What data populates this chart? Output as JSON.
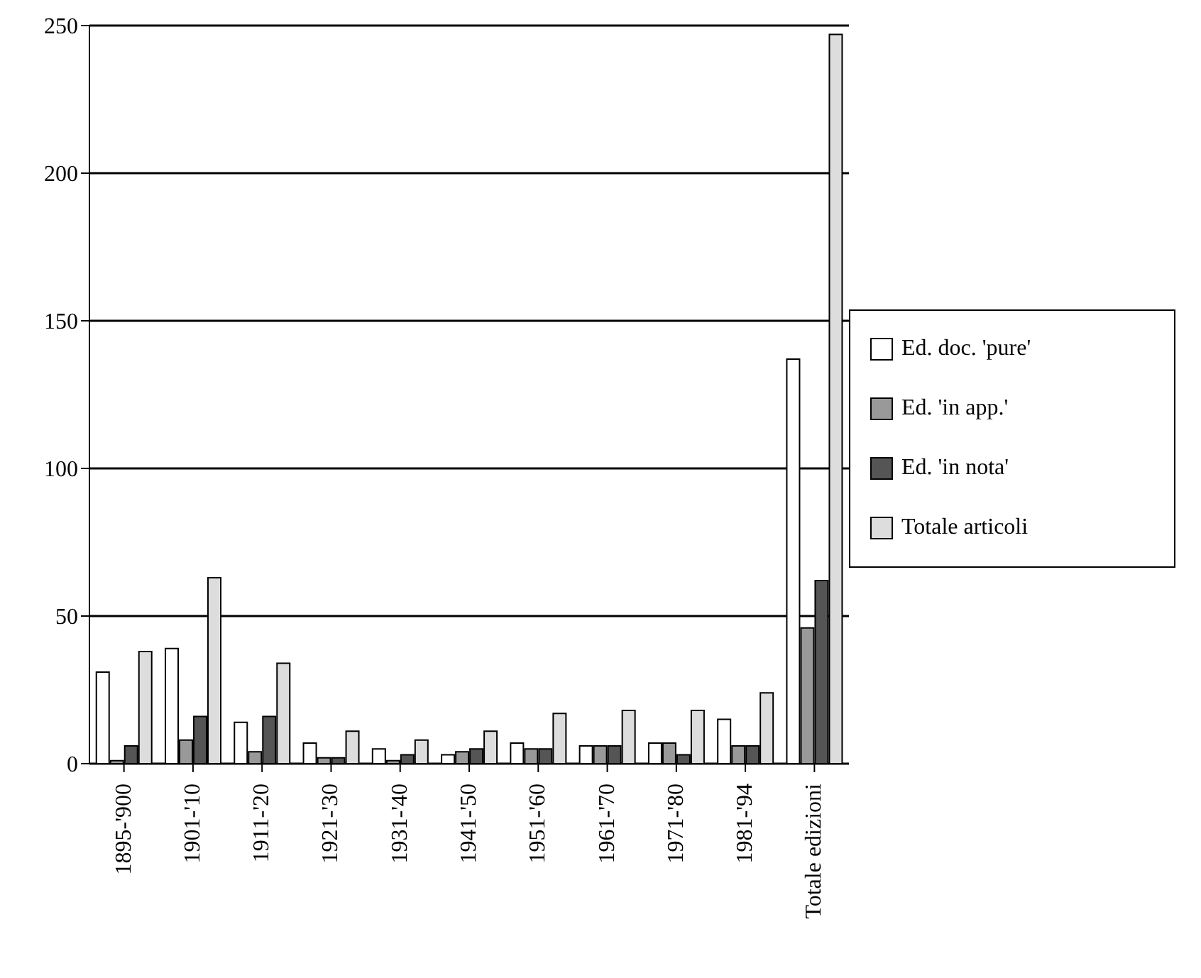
{
  "chart_data": {
    "type": "bar",
    "categories": [
      "1895-'900",
      "1901-'10",
      "1911-'20",
      "1921-'30",
      "1931-'40",
      "1941-'50",
      "1951-'60",
      "1961-'70",
      "1971-'80",
      "1981-'94",
      "Totale edizioni"
    ],
    "series": [
      {
        "name": "Ed. doc. 'pure'",
        "color": "#ffffff",
        "values": [
          31,
          39,
          14,
          7,
          5,
          3,
          7,
          6,
          7,
          15,
          137
        ]
      },
      {
        "name": "Ed. 'in app.'",
        "color": "#999999",
        "values": [
          1,
          8,
          4,
          2,
          1,
          4,
          5,
          6,
          7,
          6,
          46
        ]
      },
      {
        "name": "Ed. 'in nota'",
        "color": "#555555",
        "values": [
          6,
          16,
          16,
          2,
          3,
          5,
          5,
          6,
          3,
          6,
          62
        ]
      },
      {
        "name": "Totale articoli",
        "color": "#dddddd",
        "values": [
          38,
          63,
          34,
          11,
          8,
          11,
          17,
          18,
          18,
          24,
          247
        ]
      }
    ],
    "ylim": [
      0,
      250
    ],
    "yticks": [
      0,
      50,
      100,
      150,
      200,
      250
    ],
    "grid": "y",
    "legend": "right"
  }
}
